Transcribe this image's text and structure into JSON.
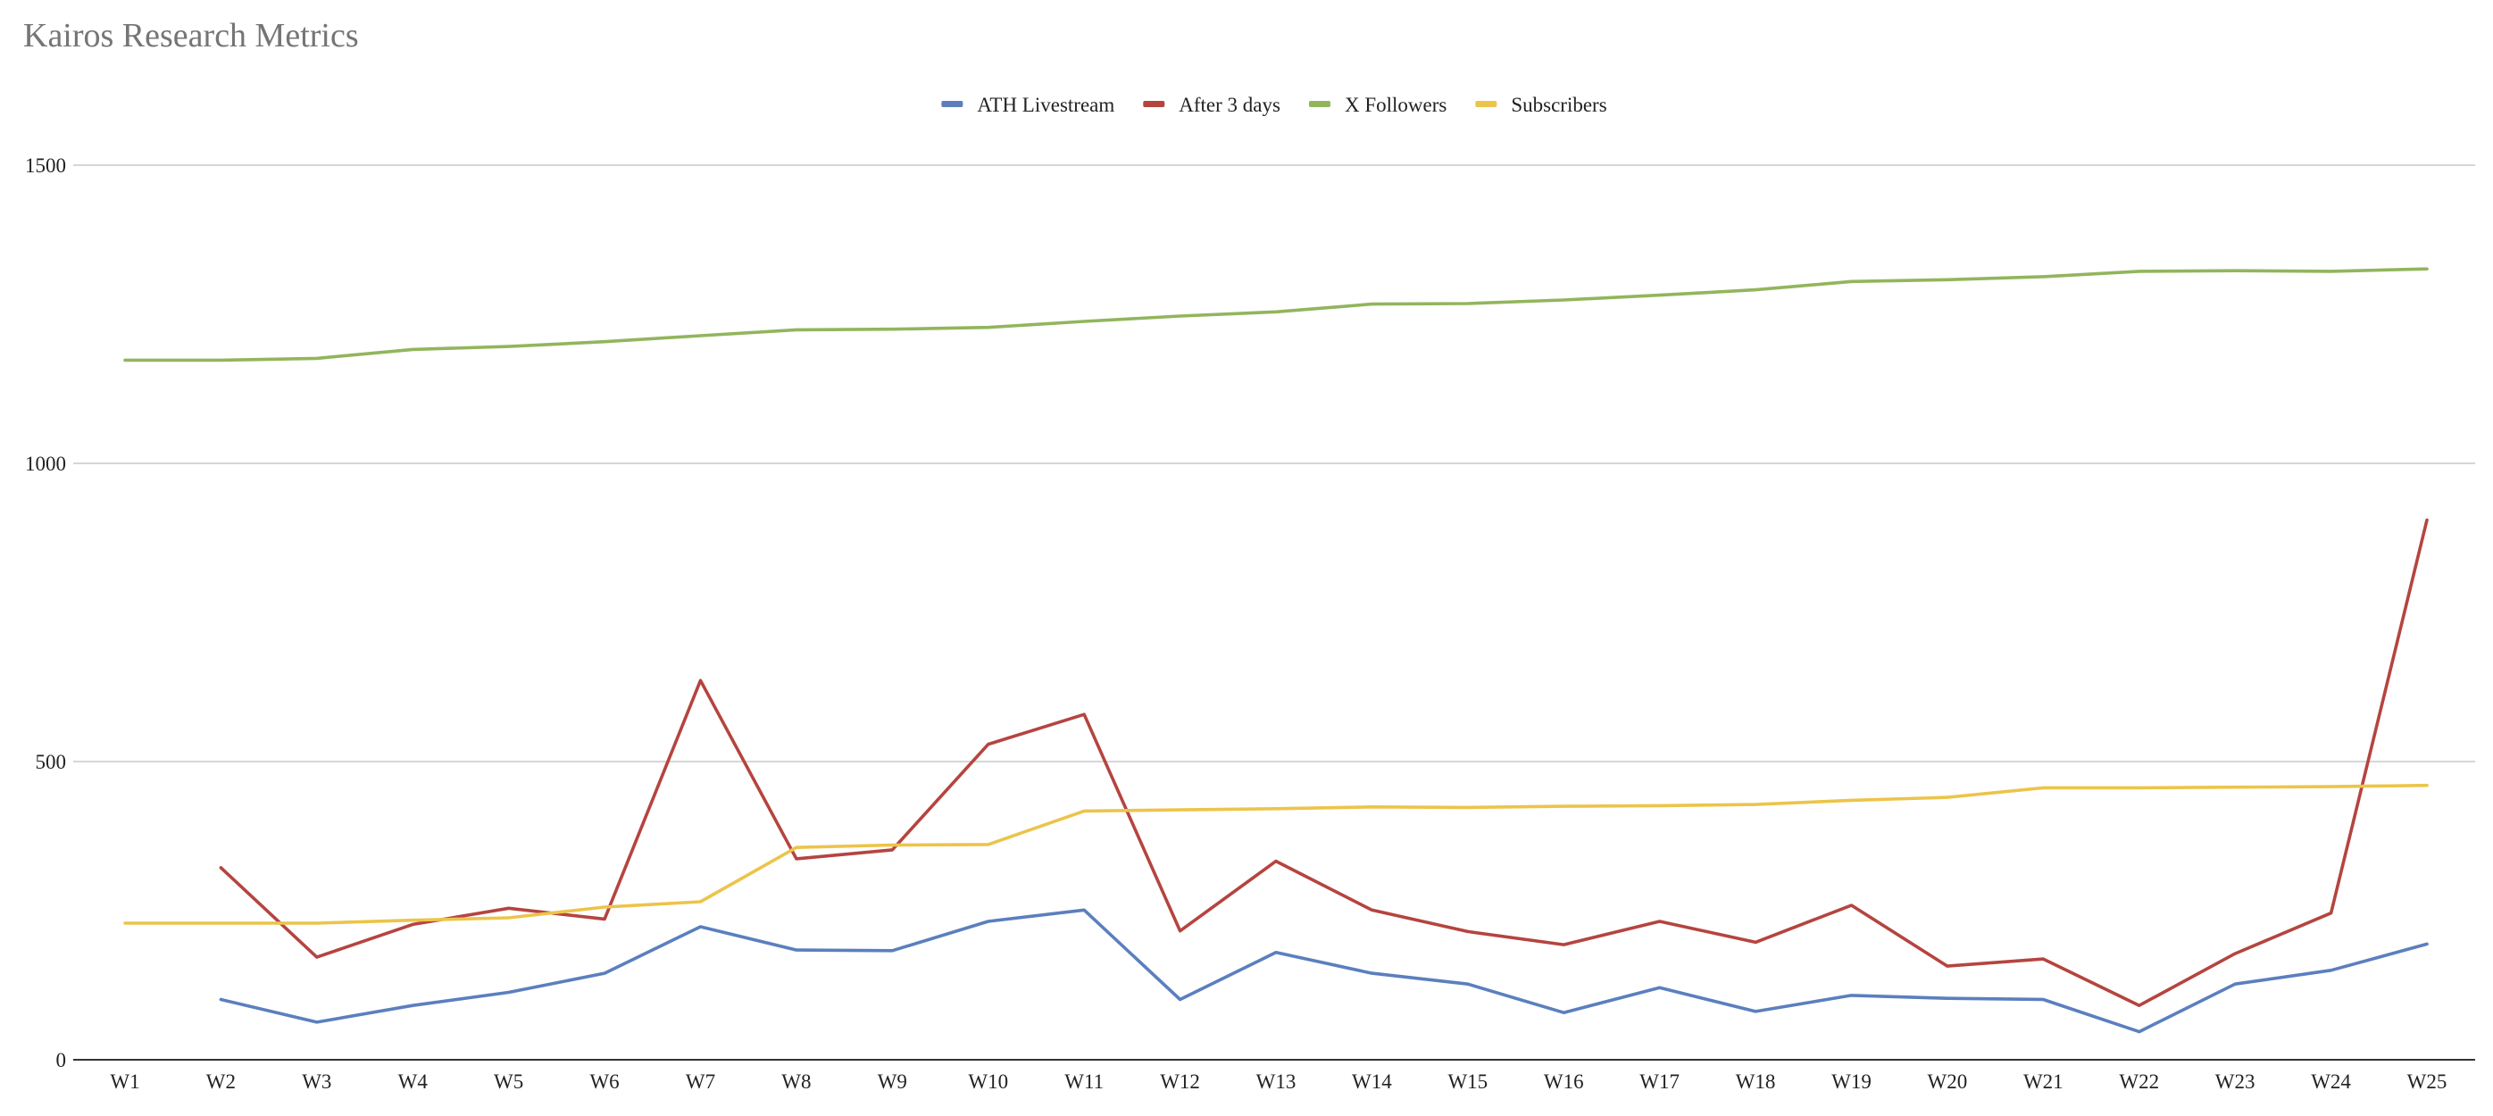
{
  "chart_data": {
    "type": "line",
    "title": "Kairos Research Metrics",
    "xlabel": "",
    "ylabel": "",
    "ylim": [
      0,
      1500
    ],
    "yticks": [
      0,
      500,
      1000,
      1500
    ],
    "grid": true,
    "legend_position": "top-center",
    "categories": [
      "W1",
      "W2",
      "W3",
      "W4",
      "W5",
      "W6",
      "W7",
      "W8",
      "W9",
      "W10",
      "W11",
      "W12",
      "W13",
      "W14",
      "W15",
      "W16",
      "W17",
      "W18",
      "W19",
      "W20",
      "W21",
      "W22",
      "W23",
      "W24",
      "W25"
    ],
    "series": [
      {
        "name": "ATH Livestream",
        "color": "#5b7fbe",
        "values": [
          null,
          101,
          63,
          91,
          113,
          145,
          223,
          184,
          183,
          232,
          251,
          101,
          180,
          145,
          127,
          79,
          121,
          81,
          108,
          103,
          101,
          47,
          127,
          150,
          194
        ]
      },
      {
        "name": "After 3 days",
        "color": "#b5443f",
        "values": [
          null,
          322,
          172,
          227,
          254,
          236,
          636,
          337,
          352,
          529,
          579,
          216,
          333,
          251,
          215,
          193,
          232,
          197,
          259,
          157,
          169,
          91,
          178,
          246,
          905
        ]
      },
      {
        "name": "X Followers",
        "color": "#92b55c",
        "values": [
          1173,
          1173,
          1176,
          1191,
          1196,
          1204,
          1214,
          1224,
          1225,
          1228,
          1238,
          1247,
          1254,
          1267,
          1268,
          1274,
          1282,
          1291,
          1305,
          1308,
          1313,
          1322,
          1323,
          1322,
          1326
        ]
      },
      {
        "name": "Subscribers",
        "color": "#ecc44a",
        "values": [
          229,
          229,
          229,
          234,
          238,
          256,
          265,
          356,
          360,
          361,
          417,
          419,
          421,
          424,
          423,
          425,
          426,
          428,
          435,
          440,
          456,
          456,
          457,
          458,
          460
        ]
      }
    ]
  }
}
